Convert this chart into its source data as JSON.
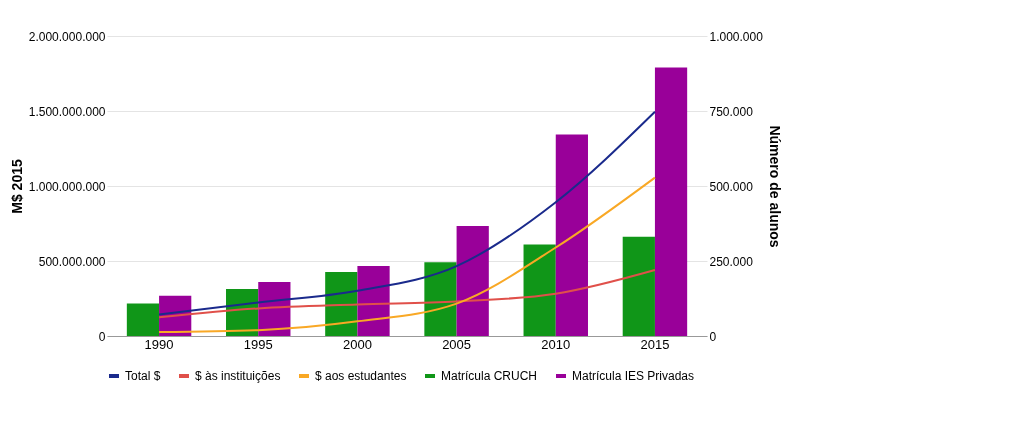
{
  "chart_data": {
    "type": "bar",
    "ylabel": "M$ 2015",
    "y2label": "Número de alunos",
    "categories": [
      "1990",
      "1995",
      "2000",
      "2005",
      "2010",
      "2015"
    ],
    "series": [
      {
        "name": "Total $",
        "type": "line",
        "color": "#1a2a8c",
        "values": [
          144000000,
          223000000,
          302000000,
          466000000,
          892000000,
          1495000000
        ]
      },
      {
        "name": "$ às instituições",
        "type": "line",
        "color": "#e0504a",
        "values": [
          125000000,
          184000000,
          210000000,
          230000000,
          282000000,
          440000000
        ]
      },
      {
        "name": "$ aos estudantes",
        "type": "line",
        "color": "#f9a825",
        "values": [
          26000000,
          39000000,
          98000000,
          216000000,
          590000000,
          1056000000
        ]
      },
      {
        "name": "Matrícula CRUCH",
        "type": "bar",
        "axis": "y2",
        "color": "#109618",
        "values": [
          108000,
          157000,
          213000,
          246000,
          305000,
          331000
        ]
      },
      {
        "name": "Matrícula IES Privadas",
        "type": "bar",
        "axis": "y2",
        "color": "#990099",
        "values": [
          134000,
          180000,
          233000,
          367000,
          672000,
          895000
        ]
      }
    ],
    "ylim": [
      0,
      2000000000
    ],
    "yticks": [
      0,
      {
        "value": 500000000,
        "label": "500.000.000"
      },
      {
        "value": 1000000000,
        "label": "1.000.000.000"
      },
      {
        "value": 1500000000,
        "label": "1.500.000.000"
      },
      {
        "value": 2000000000,
        "label": "2.000.000.000"
      }
    ],
    "y2lim": [
      0,
      1000000
    ],
    "y2ticks": [
      0,
      {
        "value": 250000,
        "label": "250.000"
      },
      {
        "value": 500000,
        "label": "500.000"
      },
      {
        "value": 750000,
        "label": "750.000"
      },
      {
        "value": 1000000,
        "label": "1.000.000"
      }
    ],
    "grid": "y",
    "legend": "bottom",
    "line_style": "solid",
    "marker": "none"
  }
}
